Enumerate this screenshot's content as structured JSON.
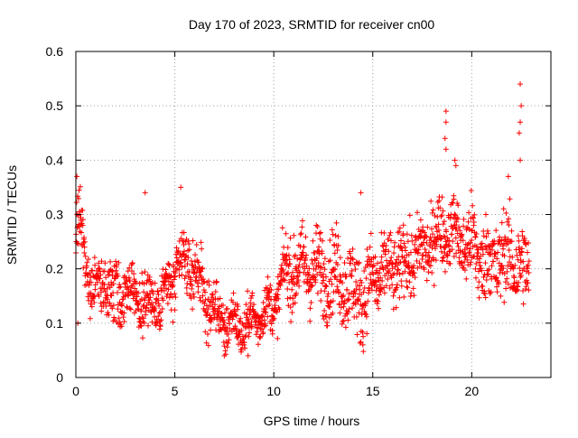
{
  "chart_data": {
    "type": "scatter",
    "title": "Day 170 of 2023, SRMTID for receiver cn00",
    "xlabel": "GPS time / hours",
    "ylabel": "SRMTID / TECUs",
    "xlim": [
      0,
      24
    ],
    "ylim": [
      0,
      0.6
    ],
    "grid": true,
    "legend": "none",
    "x_ticks": [
      0,
      5,
      10,
      15,
      20
    ],
    "x_tick_labels": [
      "0",
      "5",
      "10",
      "15",
      "20"
    ],
    "y_ticks": [
      0,
      0.1,
      0.2,
      0.3,
      0.4,
      0.5,
      0.6
    ],
    "y_tick_labels": [
      "0",
      "0.1",
      "0.2",
      "0.3",
      "0.4",
      "0.5",
      "0.6"
    ],
    "marker": "+",
    "series": [
      {
        "name": "cn00",
        "color": "#ff0000",
        "generated_from": "approximate envelope of the dense point cloud (x in hours, y in TECU)",
        "x_range": [
          0,
          22.9
        ],
        "step_hours": 0.0125,
        "trend": [
          [
            0.0,
            0.28
          ],
          [
            0.3,
            0.26
          ],
          [
            0.6,
            0.19
          ],
          [
            1.0,
            0.16
          ],
          [
            1.5,
            0.17
          ],
          [
            2.0,
            0.15
          ],
          [
            2.5,
            0.16
          ],
          [
            3.0,
            0.15
          ],
          [
            3.5,
            0.14
          ],
          [
            4.0,
            0.14
          ],
          [
            4.5,
            0.15
          ],
          [
            5.0,
            0.19
          ],
          [
            5.5,
            0.21
          ],
          [
            6.0,
            0.2
          ],
          [
            6.5,
            0.15
          ],
          [
            7.0,
            0.12
          ],
          [
            7.5,
            0.1
          ],
          [
            8.0,
            0.1
          ],
          [
            8.5,
            0.09
          ],
          [
            9.0,
            0.11
          ],
          [
            9.5,
            0.12
          ],
          [
            10.0,
            0.13
          ],
          [
            10.5,
            0.19
          ],
          [
            11.0,
            0.2
          ],
          [
            11.5,
            0.2
          ],
          [
            12.0,
            0.2
          ],
          [
            12.5,
            0.19
          ],
          [
            13.0,
            0.19
          ],
          [
            13.5,
            0.18
          ],
          [
            14.0,
            0.16
          ],
          [
            14.5,
            0.15
          ],
          [
            15.0,
            0.18
          ],
          [
            15.5,
            0.19
          ],
          [
            16.0,
            0.2
          ],
          [
            16.5,
            0.21
          ],
          [
            17.0,
            0.22
          ],
          [
            17.5,
            0.23
          ],
          [
            18.0,
            0.25
          ],
          [
            18.5,
            0.27
          ],
          [
            19.0,
            0.27
          ],
          [
            19.5,
            0.25
          ],
          [
            20.0,
            0.24
          ],
          [
            20.5,
            0.22
          ],
          [
            21.0,
            0.21
          ],
          [
            21.5,
            0.22
          ],
          [
            22.0,
            0.22
          ],
          [
            22.5,
            0.2
          ],
          [
            22.9,
            0.19
          ]
        ],
        "spread": [
          [
            0.0,
            0.05
          ],
          [
            1.0,
            0.05
          ],
          [
            2.0,
            0.05
          ],
          [
            5.0,
            0.05
          ],
          [
            7.0,
            0.045
          ],
          [
            9.0,
            0.035
          ],
          [
            10.0,
            0.04
          ],
          [
            11.0,
            0.06
          ],
          [
            14.0,
            0.07
          ],
          [
            16.0,
            0.06
          ],
          [
            18.0,
            0.06
          ],
          [
            19.0,
            0.05
          ],
          [
            20.0,
            0.07
          ],
          [
            22.0,
            0.07
          ],
          [
            22.9,
            0.07
          ]
        ],
        "outliers": [
          [
            0.05,
            0.37
          ],
          [
            0.1,
            0.1
          ],
          [
            3.5,
            0.34
          ],
          [
            5.3,
            0.35
          ],
          [
            14.4,
            0.34
          ],
          [
            18.7,
            0.49
          ],
          [
            18.7,
            0.47
          ],
          [
            18.65,
            0.44
          ],
          [
            18.7,
            0.42
          ],
          [
            19.15,
            0.4
          ],
          [
            19.2,
            0.39
          ],
          [
            22.45,
            0.54
          ],
          [
            22.5,
            0.5
          ],
          [
            22.45,
            0.47
          ],
          [
            22.4,
            0.45
          ],
          [
            22.45,
            0.4
          ],
          [
            21.85,
            0.37
          ],
          [
            7.5,
            0.04
          ],
          [
            8.7,
            0.04
          ],
          [
            14.5,
            0.06
          ]
        ]
      }
    ]
  }
}
